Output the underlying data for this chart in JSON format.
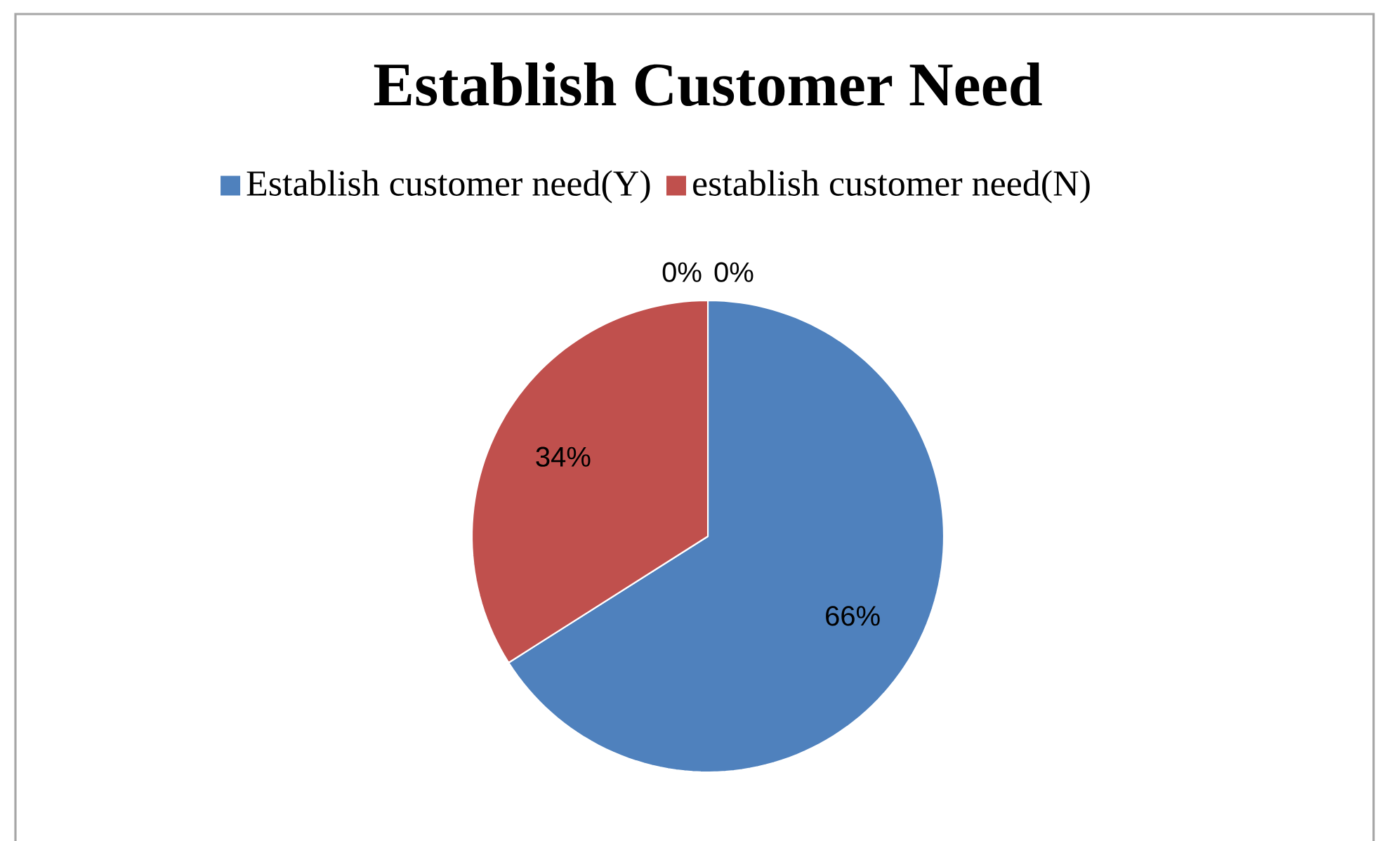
{
  "chart_data": {
    "type": "pie",
    "title": "Establish Customer Need",
    "categories": [
      "Establish customer need(Y)",
      "establish customer need(N)",
      null,
      null
    ],
    "values": [
      66,
      34,
      0,
      0
    ],
    "colors": [
      "#4f81bd",
      "#c0504d",
      "#9bbb59",
      "#8064a2"
    ],
    "value_labels": [
      "66%",
      "34%",
      "0%",
      "0%"
    ],
    "legend": "top"
  }
}
